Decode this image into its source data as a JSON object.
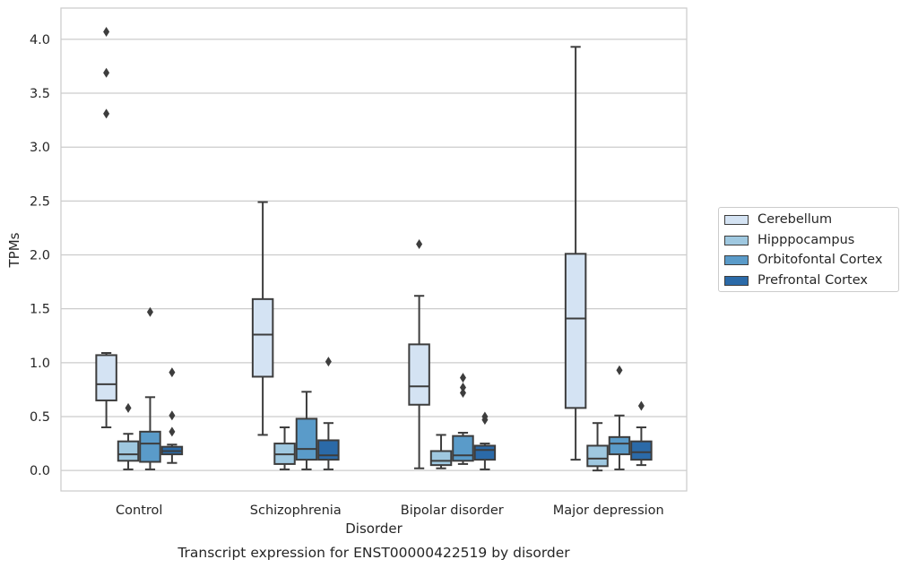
{
  "chart_data": {
    "type": "box",
    "title": "Transcript expression for ENST00000422519 by disorder",
    "xlabel": "Disorder",
    "ylabel": "TPMs",
    "ylim": [
      -0.19,
      4.29
    ],
    "yticks": [
      "0.0",
      "0.5",
      "1.0",
      "1.5",
      "2.0",
      "2.5",
      "3.0",
      "3.5",
      "4.0"
    ],
    "grid": "horizontal",
    "legend_position": "right",
    "categories": [
      "Control",
      "Schizophrenia",
      "Bipolar disorder",
      "Major depression"
    ],
    "series": [
      {
        "name": "Cerebellum",
        "color": "#d4e3f3",
        "boxes": [
          {
            "whislo": 0.4,
            "q1": 0.65,
            "med": 0.8,
            "q3": 1.07,
            "whishi": 1.09,
            "fliers": [
              3.31,
              3.69,
              4.07
            ]
          },
          {
            "whislo": 0.33,
            "q1": 0.87,
            "med": 1.26,
            "q3": 1.59,
            "whishi": 2.49,
            "fliers": []
          },
          {
            "whislo": 0.02,
            "q1": 0.61,
            "med": 0.78,
            "q3": 1.17,
            "whishi": 1.62,
            "fliers": [
              2.1
            ]
          },
          {
            "whislo": 0.1,
            "q1": 0.58,
            "med": 1.41,
            "q3": 2.01,
            "whishi": 3.93,
            "fliers": []
          }
        ]
      },
      {
        "name": "Hipppocampus",
        "color": "#9fc8e0",
        "boxes": [
          {
            "whislo": 0.01,
            "q1": 0.09,
            "med": 0.15,
            "q3": 0.27,
            "whishi": 0.34,
            "fliers": [
              0.58
            ]
          },
          {
            "whislo": 0.01,
            "q1": 0.06,
            "med": 0.15,
            "q3": 0.25,
            "whishi": 0.4,
            "fliers": []
          },
          {
            "whislo": 0.02,
            "q1": 0.05,
            "med": 0.09,
            "q3": 0.18,
            "whishi": 0.33,
            "fliers": []
          },
          {
            "whislo": 0.0,
            "q1": 0.04,
            "med": 0.11,
            "q3": 0.23,
            "whishi": 0.44,
            "fliers": []
          }
        ]
      },
      {
        "name": "Orbitofontal Cortex",
        "color": "#5a9bc9",
        "boxes": [
          {
            "whislo": 0.01,
            "q1": 0.08,
            "med": 0.25,
            "q3": 0.36,
            "whishi": 0.68,
            "fliers": [
              1.47
            ]
          },
          {
            "whislo": 0.01,
            "q1": 0.1,
            "med": 0.2,
            "q3": 0.48,
            "whishi": 0.73,
            "fliers": []
          },
          {
            "whislo": 0.06,
            "q1": 0.09,
            "med": 0.14,
            "q3": 0.32,
            "whishi": 0.35,
            "fliers": [
              0.72,
              0.77,
              0.86
            ]
          },
          {
            "whislo": 0.01,
            "q1": 0.15,
            "med": 0.25,
            "q3": 0.31,
            "whishi": 0.51,
            "fliers": [
              0.93
            ]
          }
        ]
      },
      {
        "name": "Prefrontal Cortex",
        "color": "#2b6aa8",
        "boxes": [
          {
            "whislo": 0.07,
            "q1": 0.15,
            "med": 0.18,
            "q3": 0.22,
            "whishi": 0.24,
            "fliers": [
              0.36,
              0.51,
              0.91
            ]
          },
          {
            "whislo": 0.01,
            "q1": 0.1,
            "med": 0.14,
            "q3": 0.28,
            "whishi": 0.44,
            "fliers": [
              1.01
            ]
          },
          {
            "whislo": 0.01,
            "q1": 0.1,
            "med": 0.19,
            "q3": 0.23,
            "whishi": 0.25,
            "fliers": [
              0.47,
              0.5
            ]
          },
          {
            "whislo": 0.05,
            "q1": 0.1,
            "med": 0.17,
            "q3": 0.27,
            "whishi": 0.4,
            "fliers": [
              0.6
            ]
          }
        ]
      }
    ]
  }
}
